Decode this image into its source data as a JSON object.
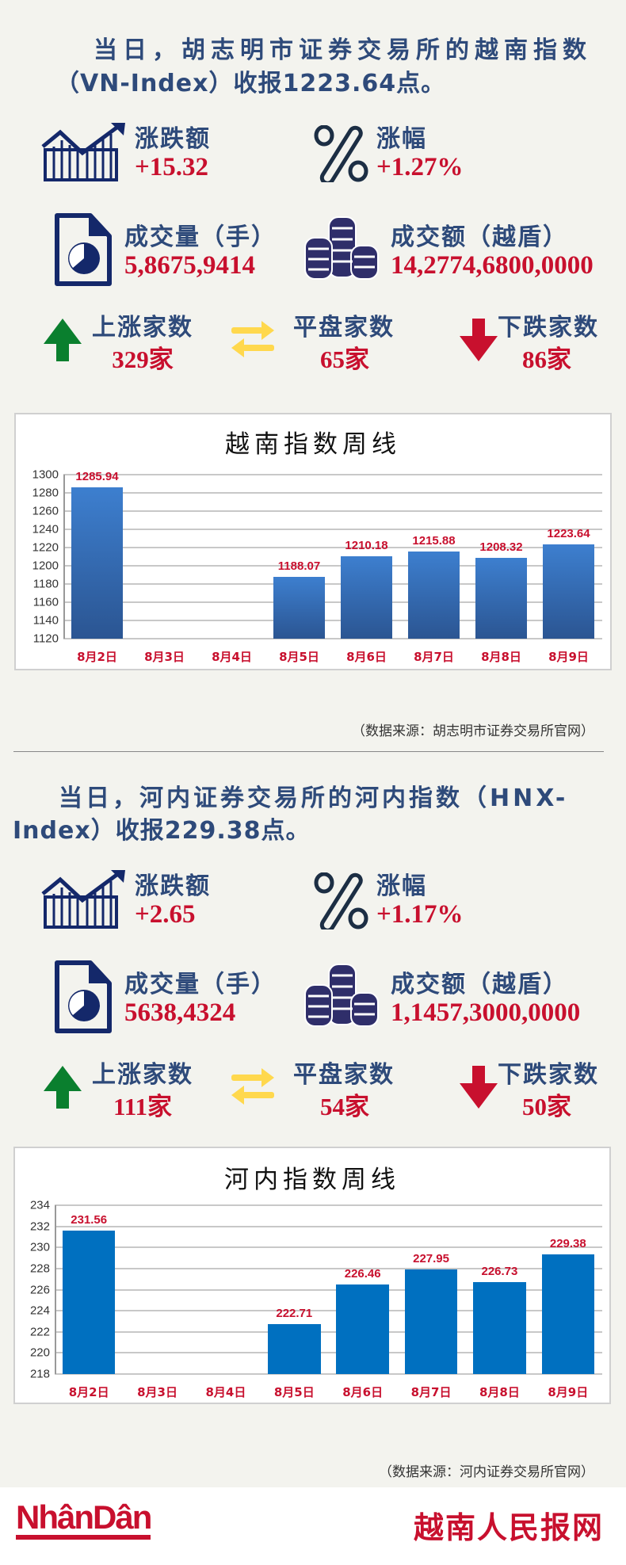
{
  "colors": {
    "navy": "#2e4a7a",
    "red": "#c8102e",
    "green": "#0a7f2e",
    "yellow": "#ffd84d",
    "bar1": "#3a7bc8",
    "bar2": "#0070c0"
  },
  "sections": [
    {
      "title_line1": "当日，胡志明市证券交易所的越南指数",
      "title_line2": "（VN-Index）收报1223.64点。",
      "change_label": "涨跌额",
      "change_value": "+15.32",
      "pct_label": "涨幅",
      "pct_value": "+1.27%",
      "volume_label": "成交量（手）",
      "volume_value": "5,8675,9414",
      "turnover_label": "成交额（越盾）",
      "turnover_value": "14,2774,6800,0000",
      "up_label": "上涨家数",
      "up_value": "329家",
      "flat_label": "平盘家数",
      "flat_value": "65家",
      "down_label": "下跌家数",
      "down_value": "86家",
      "source": "（数据来源：胡志明市证券交易所官网）"
    },
    {
      "title_line1": "当日，河内证券交易所的河内指数（HNX-",
      "title_line2": "Index）收报229.38点。",
      "change_label": "涨跌额",
      "change_value": "+2.65",
      "pct_label": "涨幅",
      "pct_value": "+1.17%",
      "volume_label": "成交量（手）",
      "volume_value": "5638,4324",
      "turnover_label": "成交额（越盾）",
      "turnover_value": "1,1457,3000,0000",
      "up_label": "上涨家数",
      "up_value": "111家",
      "flat_label": "平盘家数",
      "flat_value": "54家",
      "down_label": "下跌家数",
      "down_value": "50家",
      "source": "（数据来源：河内证券交易所官网）"
    }
  ],
  "chart_data": [
    {
      "type": "bar",
      "title": "越南指数周线",
      "categories": [
        "8月2日",
        "8月3日",
        "8月4日",
        "8月5日",
        "8月6日",
        "8月7日",
        "8月8日",
        "8月9日"
      ],
      "values": [
        1285.94,
        null,
        null,
        1188.07,
        1210.18,
        1215.88,
        1208.32,
        1223.64
      ],
      "value_labels": [
        "1285.94",
        "",
        "",
        "1188.07",
        "1210.18",
        "1215.88",
        "1208.32",
        "1223.64"
      ],
      "ylim": [
        1120,
        1300
      ],
      "yticks": [
        "1120",
        "1140",
        "1160",
        "1180",
        "1200",
        "1220",
        "1240",
        "1260",
        "1280",
        "1300"
      ],
      "grid": true,
      "bar_style": "gradient",
      "xlabel": "",
      "ylabel": ""
    },
    {
      "type": "bar",
      "title": "河内指数周线",
      "categories": [
        "8月2日",
        "8月3日",
        "8月4日",
        "8月5日",
        "8月6日",
        "8月7日",
        "8月8日",
        "8月9日"
      ],
      "values": [
        231.56,
        null,
        null,
        222.71,
        226.46,
        227.95,
        226.73,
        229.38
      ],
      "value_labels": [
        "231.56",
        "",
        "",
        "222.71",
        "226.46",
        "227.95",
        "226.73",
        "229.38"
      ],
      "ylim": [
        218,
        234
      ],
      "yticks": [
        "218",
        "220",
        "222",
        "224",
        "226",
        "228",
        "230",
        "232",
        "234"
      ],
      "grid": true,
      "bar_style": "solid",
      "xlabel": "",
      "ylabel": ""
    }
  ],
  "footer": {
    "logo_left": "NhânDân",
    "logo_right": "越南人民报网"
  }
}
